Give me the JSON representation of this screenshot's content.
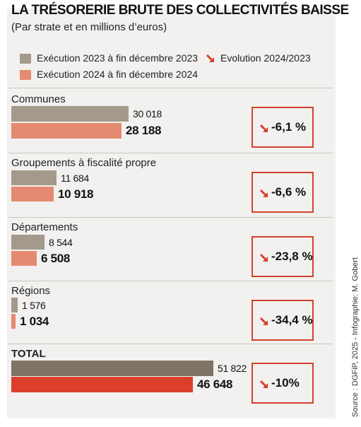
{
  "header": {
    "title": "LA TRÉSORERIE BRUTE DES COLLECTIVITÉS BAISSE",
    "subtitle": "(Par strate et en millions d’euros)"
  },
  "legend": {
    "series_2023": "Exécution 2023 à fin décembre 2023",
    "series_2024": "Exécution 2024 à fin décembre 2024",
    "evolution": "Evolution 2024/2023"
  },
  "colors": {
    "series_2023": "#a39a8b",
    "series_2024": "#e58a72",
    "total_2023": "#7e7567",
    "total_2024": "#db3f2b",
    "accent": "#d5402c"
  },
  "source": "Source : DGFiP, 2025 - Infographie: M. Gobert",
  "chart_data": {
    "type": "bar",
    "orientation": "horizontal",
    "title": "LA TRÉSORERIE BRUTE DES COLLECTIVITÉS BAISSE",
    "subtitle": "(Par strate et en millions d’euros)",
    "categories": [
      "Communes",
      "Groupements à fiscalité propre",
      "Départements",
      "Régions",
      "TOTAL"
    ],
    "series": [
      {
        "name": "Exécution 2023 à fin décembre 2023",
        "values": [
          30018,
          11684,
          8544,
          1576,
          51822
        ],
        "labels": [
          "30 018",
          "11 684",
          "8 544",
          "1 576",
          "51 822"
        ]
      },
      {
        "name": "Exécution 2024 à fin décembre 2024",
        "values": [
          28188,
          10918,
          6508,
          1034,
          46648
        ],
        "labels": [
          "28 188",
          "10 918",
          "6 508",
          "1 034",
          "46 648"
        ]
      }
    ],
    "evolution": [
      "-6,1 %",
      "-6,6 %",
      "-23,8 %",
      "-34,4 %",
      "-10%"
    ],
    "legend_position": "top-left",
    "grid": false
  }
}
